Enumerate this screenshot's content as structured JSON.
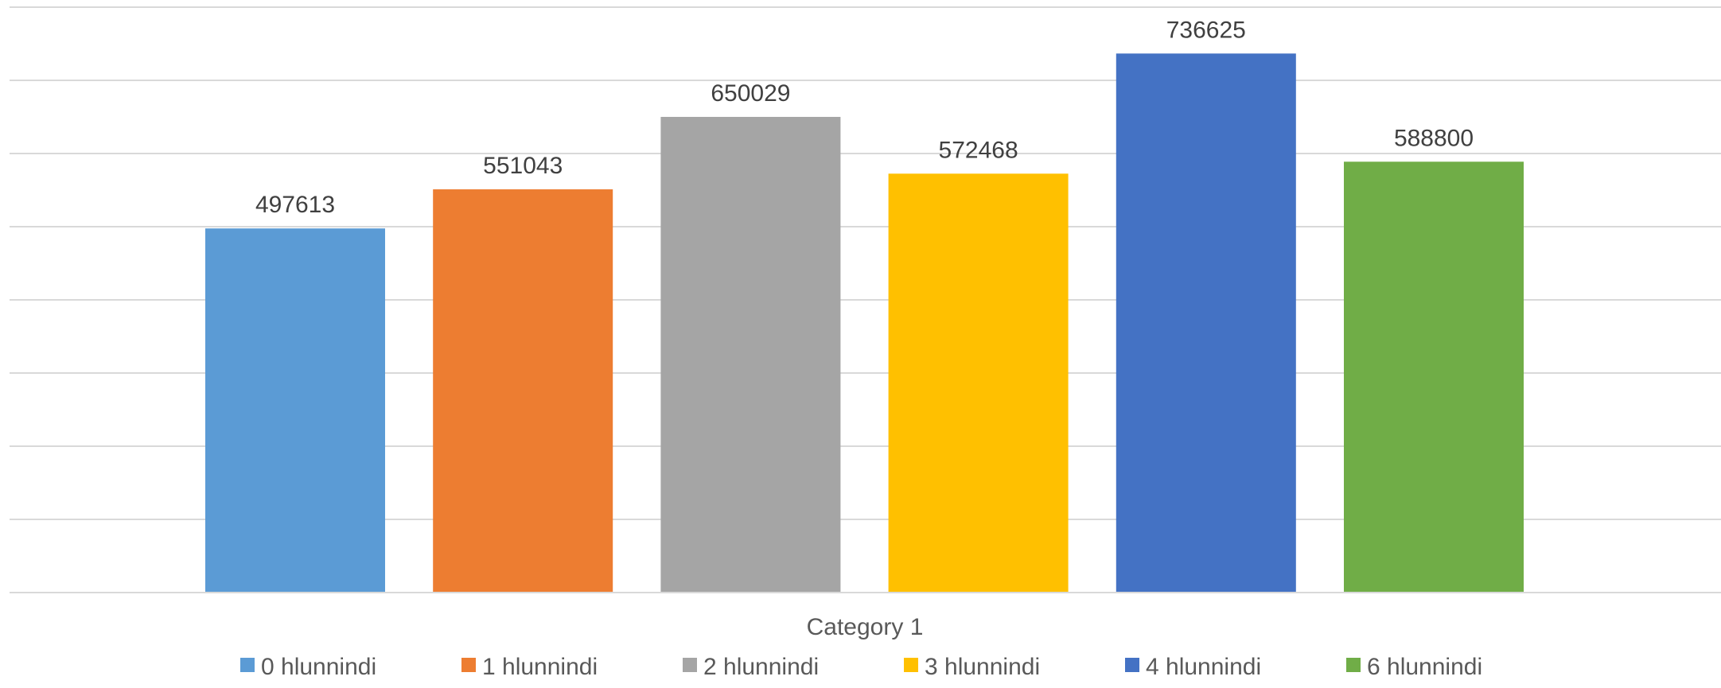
{
  "chart_data": {
    "type": "bar",
    "title": "",
    "xlabel": "",
    "ylabel": "",
    "categories": [
      "Category 1"
    ],
    "ylim": [
      0,
      800000
    ],
    "grid": true,
    "legend_position": "bottom",
    "data_labels": true,
    "series": [
      {
        "name": "0 hlunnindi",
        "values": [
          497613
        ],
        "color": "#5b9bd5"
      },
      {
        "name": "1 hlunnindi",
        "values": [
          551043
        ],
        "color": "#ed7d31"
      },
      {
        "name": "2 hlunnindi",
        "values": [
          650029
        ],
        "color": "#a5a5a5"
      },
      {
        "name": "3 hlunnindi",
        "values": [
          572468
        ],
        "color": "#ffc000"
      },
      {
        "name": "4 hlunnindi",
        "values": [
          736625
        ],
        "color": "#4472c4"
      },
      {
        "name": "6 hlunnindi",
        "values": [
          588800
        ],
        "color": "#70ad47"
      }
    ]
  }
}
